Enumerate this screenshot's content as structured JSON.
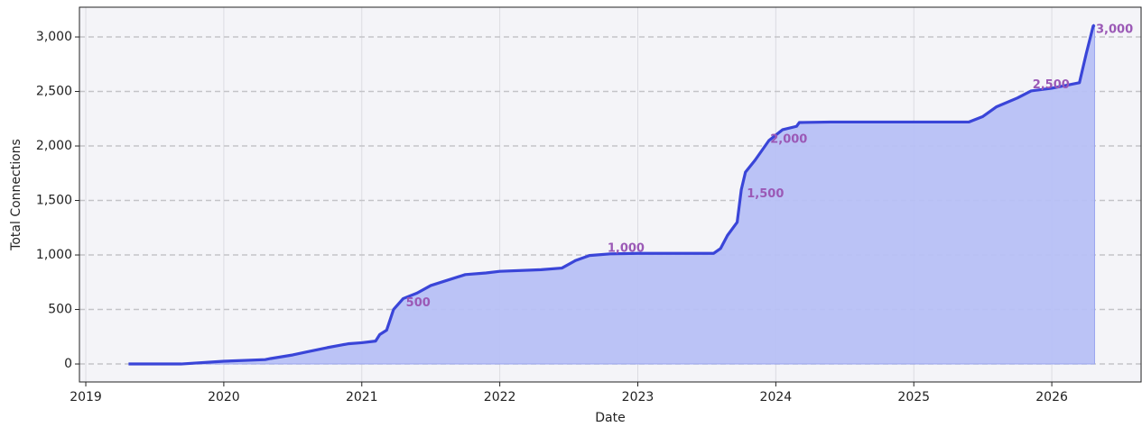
{
  "chart_data": {
    "type": "area",
    "xlabel": "Date",
    "ylabel": "Total Connections",
    "x": [
      2019.31,
      2019.69,
      2020.0,
      2020.3,
      2020.34,
      2020.5,
      2020.6,
      2020.75,
      2020.9,
      2021.0,
      2021.1,
      2021.13,
      2021.18,
      2021.23,
      2021.3,
      2021.4,
      2021.5,
      2021.6,
      2021.75,
      2021.9,
      2022.0,
      2022.3,
      2022.45,
      2022.55,
      2022.65,
      2022.8,
      2023.0,
      2023.55,
      2023.6,
      2023.65,
      2023.72,
      2023.75,
      2023.78,
      2023.85,
      2023.95,
      2024.05,
      2024.15,
      2024.17,
      2024.4,
      2025.4,
      2025.5,
      2025.6,
      2025.75,
      2025.85,
      2026.0,
      2026.2,
      2026.25,
      2026.3,
      2026.31
    ],
    "series": [
      {
        "name": "Total Connections",
        "color": "#3a45d8",
        "fill": "#b7c0f5",
        "values": [
          0,
          0,
          25,
          40,
          50,
          83,
          110,
          150,
          185,
          195,
          210,
          270,
          310,
          500,
          600,
          650,
          720,
          760,
          820,
          835,
          850,
          865,
          880,
          950,
          995,
          1010,
          1015,
          1015,
          1060,
          1180,
          1300,
          1600,
          1760,
          1870,
          2050,
          2150,
          2180,
          2215,
          2220,
          2220,
          2270,
          2360,
          2440,
          2505,
          2530,
          2580,
          2850,
          3100,
          3110
        ]
      }
    ],
    "xlim": [
      2018.954,
      2026.647
    ],
    "ylim": [
      -165,
      3273
    ],
    "xticks": [
      2019,
      2020,
      2021,
      2022,
      2023,
      2024,
      2025,
      2026
    ],
    "yticks": [
      0,
      500,
      {
        "value": 1000,
        "label": "1,000"
      },
      {
        "value": 1500,
        "label": "1,500"
      },
      {
        "value": 2000,
        "label": "2,000"
      },
      {
        "value": 2500,
        "label": "2,500"
      },
      {
        "value": 3000,
        "label": "3,000"
      }
    ],
    "grid": true,
    "annotations": [
      {
        "text": "500",
        "x": 2021.32,
        "y": 560
      },
      {
        "text": "1,000",
        "x": 2022.78,
        "y": 1060
      },
      {
        "text": "1,500",
        "x": 2023.79,
        "y": 1560
      },
      {
        "text": "2,000",
        "x": 2023.96,
        "y": 2060
      },
      {
        "text": "2,500",
        "x": 2025.86,
        "y": 2560
      },
      {
        "text": "3,000",
        "x": 2026.32,
        "y": 3065
      }
    ],
    "annotation_color": "#9b59b6"
  }
}
